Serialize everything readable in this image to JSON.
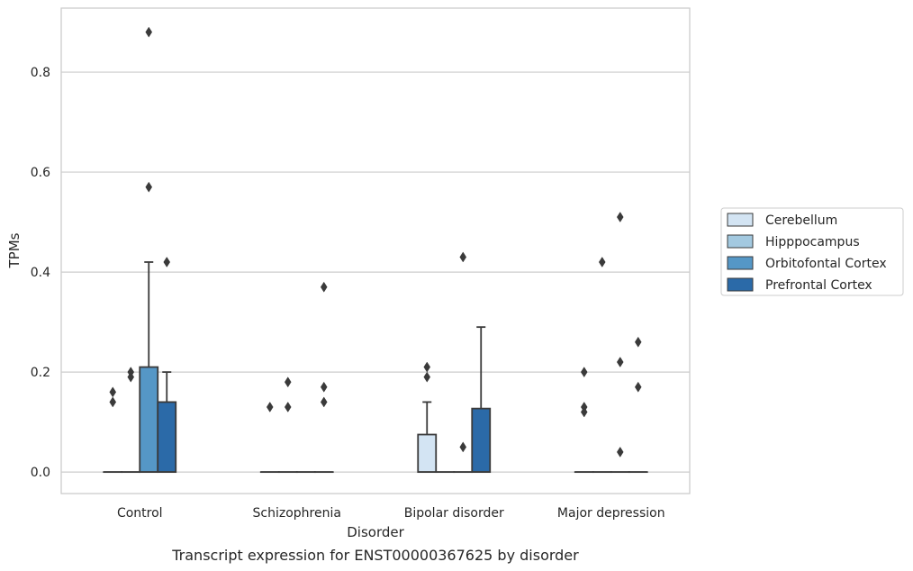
{
  "chart_data": {
    "type": "box",
    "title": "",
    "caption": "Transcript expression for ENST00000367625 by disorder",
    "xlabel": "Disorder",
    "ylabel": "TPMs",
    "ylim": [
      -0.043,
      0.928
    ],
    "yticks": [
      0.0,
      0.2,
      0.4,
      0.6,
      0.8
    ],
    "ytick_labels": [
      "0.0",
      "0.2",
      "0.4",
      "0.6",
      "0.8"
    ],
    "grid": true,
    "legend_position": "right",
    "categories": [
      "Control",
      "Schizophrenia",
      "Bipolar disorder",
      "Major depression"
    ],
    "series": [
      {
        "name": "Cerebellum",
        "color": "#d3e4f3",
        "boxes": [
          {
            "q1": 0,
            "median": 0,
            "q3": 0,
            "whisker_low": 0,
            "whisker_high": 0,
            "outliers": [
              0.14,
              0.16
            ]
          },
          {
            "q1": 0,
            "median": 0,
            "q3": 0,
            "whisker_low": 0,
            "whisker_high": 0,
            "outliers": [
              0.13
            ]
          },
          {
            "q1": 0,
            "median": 0,
            "q3": 0.075,
            "whisker_low": 0,
            "whisker_high": 0.14,
            "outliers": [
              0.19,
              0.21
            ]
          },
          {
            "q1": 0,
            "median": 0,
            "q3": 0,
            "whisker_low": 0,
            "whisker_high": 0,
            "outliers": [
              0.12,
              0.13,
              0.2
            ]
          }
        ]
      },
      {
        "name": "Hipppocampus",
        "color": "#a3c9e0",
        "boxes": [
          {
            "q1": 0,
            "median": 0,
            "q3": 0,
            "whisker_low": 0,
            "whisker_high": 0,
            "outliers": [
              0.19,
              0.2
            ]
          },
          {
            "q1": 0,
            "median": 0,
            "q3": 0,
            "whisker_low": 0,
            "whisker_high": 0,
            "outliers": [
              0.13,
              0.18
            ]
          },
          {
            "q1": 0,
            "median": 0,
            "q3": 0,
            "whisker_low": 0,
            "whisker_high": 0,
            "outliers": []
          },
          {
            "q1": 0,
            "median": 0,
            "q3": 0,
            "whisker_low": 0,
            "whisker_high": 0,
            "outliers": [
              0.42
            ]
          }
        ]
      },
      {
        "name": "Orbitofontal Cortex",
        "color": "#5597c6",
        "boxes": [
          {
            "q1": 0,
            "median": 0,
            "q3": 0.21,
            "whisker_low": 0,
            "whisker_high": 0.42,
            "outliers": [
              0.57,
              0.88
            ]
          },
          {
            "q1": 0,
            "median": 0,
            "q3": 0,
            "whisker_low": 0,
            "whisker_high": 0,
            "outliers": []
          },
          {
            "q1": 0,
            "median": 0,
            "q3": 0,
            "whisker_low": 0,
            "whisker_high": 0,
            "outliers": [
              0.05,
              0.43
            ]
          },
          {
            "q1": 0,
            "median": 0,
            "q3": 0,
            "whisker_low": 0,
            "whisker_high": 0,
            "outliers": [
              0.04,
              0.22,
              0.51
            ]
          }
        ]
      },
      {
        "name": "Prefrontal Cortex",
        "color": "#2b6aa8",
        "boxes": [
          {
            "q1": 0,
            "median": 0,
            "q3": 0.14,
            "whisker_low": 0,
            "whisker_high": 0.2,
            "outliers": [
              0.42
            ]
          },
          {
            "q1": 0,
            "median": 0,
            "q3": 0,
            "whisker_low": 0,
            "whisker_high": 0,
            "outliers": [
              0.14,
              0.17,
              0.37
            ]
          },
          {
            "q1": 0,
            "median": 0,
            "q3": 0.127,
            "whisker_low": 0,
            "whisker_high": 0.29,
            "outliers": []
          },
          {
            "q1": 0,
            "median": 0,
            "q3": 0,
            "whisker_low": 0,
            "whisker_high": 0,
            "outliers": [
              0.17,
              0.26
            ]
          }
        ]
      }
    ]
  }
}
